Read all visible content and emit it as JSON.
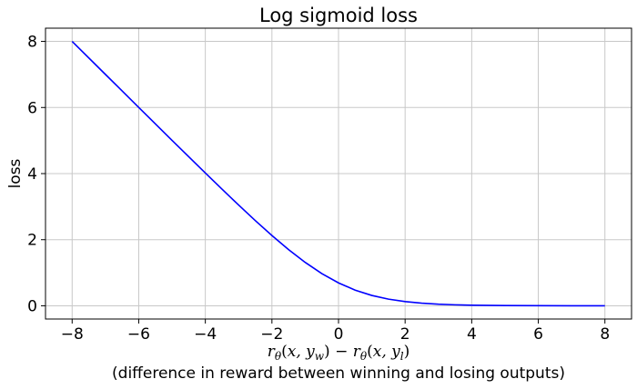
{
  "chart_data": {
    "type": "line",
    "title": "Log sigmoid loss",
    "ylabel": "loss",
    "xlabel_line1": "rθ(x, yw) − rθ(x, yl)",
    "xlabel_line2": "(difference in reward between winning and losing outputs)",
    "xlim": [
      -8.8,
      8.8
    ],
    "ylim": [
      -0.4,
      8.4
    ],
    "x_ticks": [
      -8,
      -6,
      -4,
      -2,
      0,
      2,
      4,
      6,
      8
    ],
    "x_tick_labels": [
      "−8",
      "−6",
      "−4",
      "−2",
      "0",
      "2",
      "4",
      "6",
      "8"
    ],
    "y_ticks": [
      0,
      2,
      4,
      6,
      8
    ],
    "y_tick_labels": [
      "0",
      "2",
      "4",
      "6",
      "8"
    ],
    "grid": true,
    "series": [
      {
        "color": "#0000ff",
        "x": [
          -8,
          -7,
          -6,
          -5,
          -4,
          -3.5,
          -3,
          -2.5,
          -2,
          -1.5,
          -1,
          -0.5,
          0,
          0.5,
          1,
          1.5,
          2,
          2.5,
          3,
          3.5,
          4,
          5,
          6,
          7,
          8
        ],
        "y": [
          8.0003,
          7.0009,
          6.0025,
          5.0067,
          4.0181,
          3.5298,
          3.0486,
          2.5789,
          2.1269,
          1.7014,
          1.3133,
          0.9741,
          0.6931,
          0.4741,
          0.3133,
          0.2014,
          0.1269,
          0.0789,
          0.0486,
          0.0298,
          0.0181,
          0.0067,
          0.0025,
          0.0009,
          0.0003
        ]
      }
    ]
  }
}
